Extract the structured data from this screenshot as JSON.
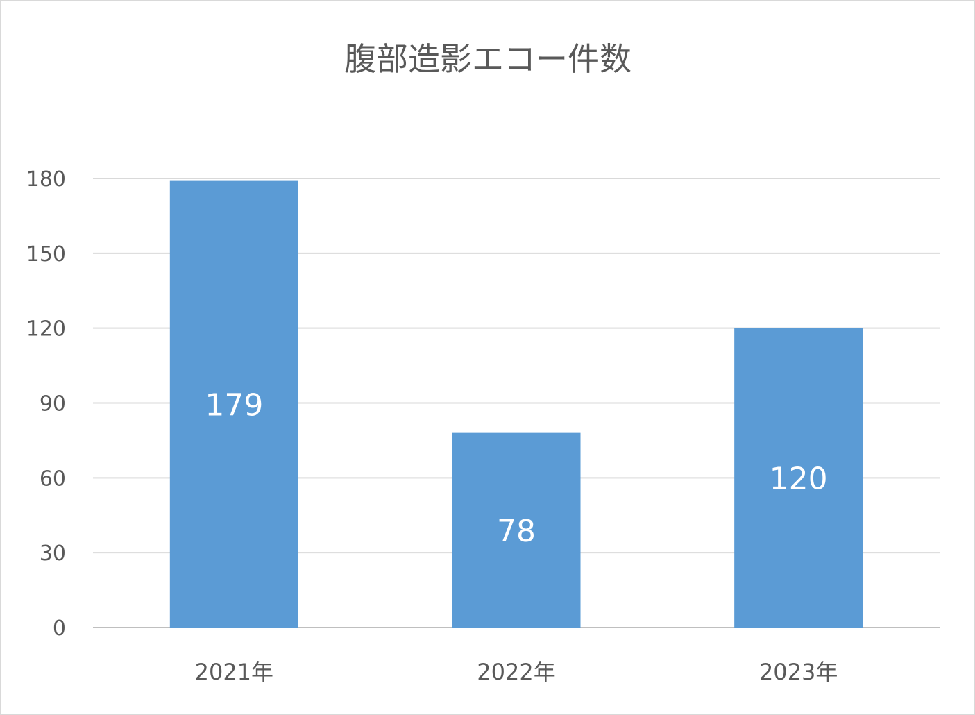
{
  "chart_data": {
    "type": "bar",
    "title": "腹部造影エコー件数",
    "categories": [
      "2021年",
      "2022年",
      "2023年"
    ],
    "values": [
      179,
      78,
      120
    ],
    "data_labels": [
      "179",
      "78",
      "120"
    ],
    "ylim": [
      0,
      180
    ],
    "yticks": [
      0,
      30,
      60,
      90,
      120,
      150,
      180
    ],
    "grid": true,
    "legend": "none",
    "bar_color": "#5b9bd5",
    "xlabel": "",
    "ylabel": ""
  }
}
